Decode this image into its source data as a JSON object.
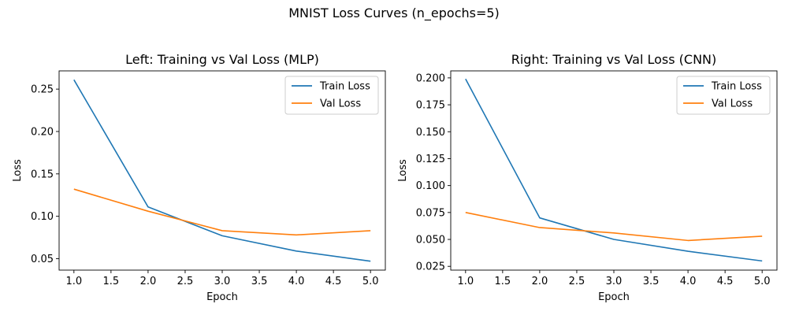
{
  "figure": {
    "suptitle": "MNIST Loss Curves (n_epochs=5)"
  },
  "chart_data": [
    {
      "type": "line",
      "title": "Left: Training vs Val Loss (MLP)",
      "xlabel": "Epoch",
      "ylabel": "Loss",
      "xlim": [
        0.8,
        5.2
      ],
      "ylim": [
        0.0365,
        0.2715
      ],
      "xticks": [
        1.0,
        1.5,
        2.0,
        2.5,
        3.0,
        3.5,
        4.0,
        4.5,
        5.0
      ],
      "xtick_labels": [
        "1.0",
        "1.5",
        "2.0",
        "2.5",
        "3.0",
        "3.5",
        "4.0",
        "4.5",
        "5.0"
      ],
      "yticks": [
        0.05,
        0.1,
        0.15,
        0.2,
        0.25
      ],
      "ytick_labels": [
        "0.05",
        "0.10",
        "0.15",
        "0.20",
        "0.25"
      ],
      "grid": false,
      "legend_position": "upper right",
      "x": [
        1,
        2,
        3,
        4,
        5
      ],
      "series": [
        {
          "name": "Train Loss",
          "color": "#1f77b4",
          "values": [
            0.261,
            0.111,
            0.077,
            0.059,
            0.047
          ]
        },
        {
          "name": "Val Loss",
          "color": "#ff7f0e",
          "values": [
            0.132,
            0.106,
            0.083,
            0.078,
            0.083
          ]
        }
      ]
    },
    {
      "type": "line",
      "title": "Right: Training vs Val Loss (CNN)",
      "xlabel": "Epoch",
      "ylabel": "Loss",
      "xlim": [
        0.8,
        5.2
      ],
      "ylim": [
        0.0215,
        0.2065
      ],
      "xticks": [
        1.0,
        1.5,
        2.0,
        2.5,
        3.0,
        3.5,
        4.0,
        4.5,
        5.0
      ],
      "xtick_labels": [
        "1.0",
        "1.5",
        "2.0",
        "2.5",
        "3.0",
        "3.5",
        "4.0",
        "4.5",
        "5.0"
      ],
      "yticks": [
        0.025,
        0.05,
        0.075,
        0.1,
        0.125,
        0.15,
        0.175,
        0.2
      ],
      "ytick_labels": [
        "0.025",
        "0.050",
        "0.075",
        "0.100",
        "0.125",
        "0.150",
        "0.175",
        "0.200"
      ],
      "grid": false,
      "legend_position": "upper right",
      "x": [
        1,
        2,
        3,
        4,
        5
      ],
      "series": [
        {
          "name": "Train Loss",
          "color": "#1f77b4",
          "values": [
            0.199,
            0.07,
            0.05,
            0.039,
            0.03
          ]
        },
        {
          "name": "Val Loss",
          "color": "#ff7f0e",
          "values": [
            0.075,
            0.061,
            0.056,
            0.049,
            0.053
          ]
        }
      ]
    }
  ]
}
